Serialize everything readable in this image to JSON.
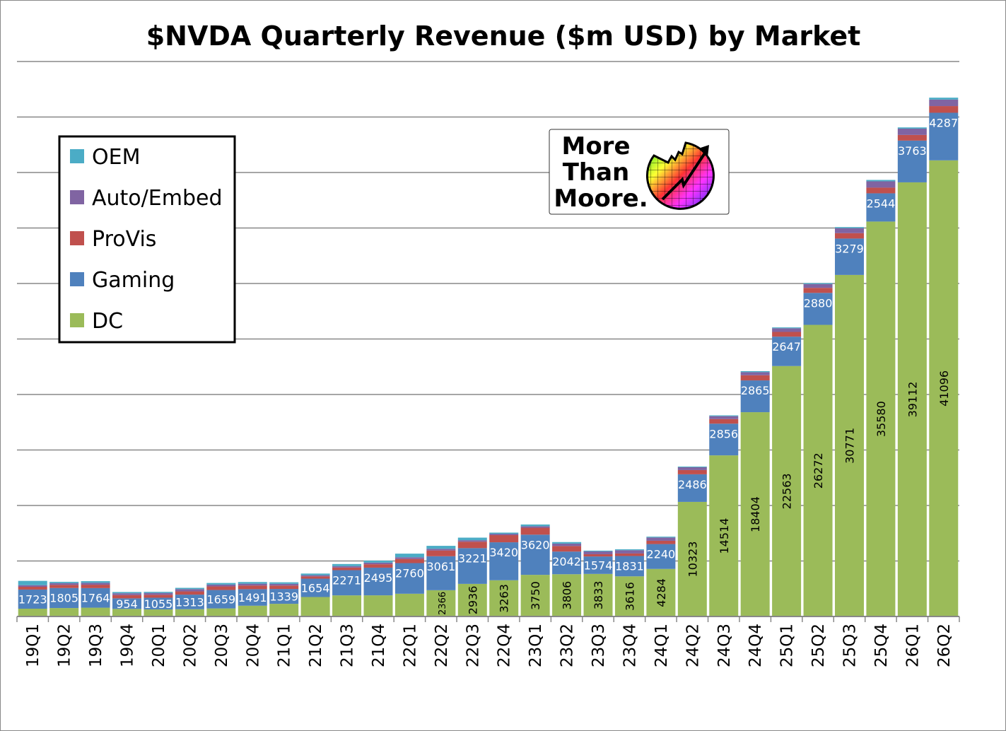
{
  "chart_data": {
    "type": "bar",
    "stacked": true,
    "title": "$NVDA Quarterly Revenue ($m USD) by Market",
    "xlabel": "",
    "ylabel": "",
    "ylim": [
      0,
      50000
    ],
    "y_grid_step": 5000,
    "grid": true,
    "legend_position": "top-left",
    "categories": [
      "19Q1",
      "19Q2",
      "19Q3",
      "19Q4",
      "20Q1",
      "20Q2",
      "20Q3",
      "20Q4",
      "21Q1",
      "21Q2",
      "21Q3",
      "21Q4",
      "22Q1",
      "22Q2",
      "22Q3",
      "22Q4",
      "23Q1",
      "23Q2",
      "23Q3",
      "23Q4",
      "24Q1",
      "24Q2",
      "24Q3",
      "24Q4",
      "25Q1",
      "25Q2",
      "25Q3",
      "25Q4",
      "26Q1",
      "26Q2"
    ],
    "series": [
      {
        "name": "DC",
        "color": "#9BBB59",
        "values": [
          701,
          760,
          792,
          679,
          634,
          655,
          726,
          968,
          1141,
          1752,
          1900,
          1903,
          2048,
          2366,
          2936,
          3263,
          3750,
          3806,
          3833,
          3616,
          4284,
          10323,
          14514,
          18404,
          22563,
          26272,
          30771,
          35580,
          39112,
          41096
        ]
      },
      {
        "name": "Gaming",
        "color": "#4F81BD",
        "values": [
          1723,
          1805,
          1764,
          954,
          1055,
          1313,
          1659,
          1491,
          1339,
          1654,
          2271,
          2495,
          2760,
          3061,
          3221,
          3420,
          3620,
          2042,
          1574,
          1831,
          2240,
          2486,
          2856,
          2865,
          2647,
          2880,
          3279,
          2544,
          3763,
          4287
        ]
      },
      {
        "name": "ProVis",
        "color": "#C0504D",
        "values": [
          251,
          281,
          305,
          293,
          266,
          291,
          324,
          331,
          307,
          203,
          236,
          307,
          372,
          519,
          577,
          643,
          622,
          496,
          200,
          226,
          295,
          379,
          416,
          463,
          427,
          454,
          486,
          511,
          509,
          601
        ]
      },
      {
        "name": "Auto/Embed",
        "color": "#8064A2",
        "values": [
          145,
          161,
          172,
          163,
          166,
          209,
          162,
          163,
          155,
          111,
          125,
          145,
          154,
          152,
          135,
          125,
          138,
          220,
          251,
          294,
          296,
          253,
          261,
          281,
          329,
          346,
          449,
          570,
          567,
          586
        ]
      },
      {
        "name": "OEM",
        "color": "#4BACC6",
        "values": [
          387,
          116,
          148,
          116,
          99,
          111,
          148,
          152,
          138,
          146,
          194,
          180,
          327,
          266,
          234,
          105,
          158,
          140,
          73,
          84,
          77,
          66,
          73,
          90,
          78,
          88,
          97,
          126,
          111,
          173
        ]
      }
    ],
    "data_labels": {
      "Gaming": "all",
      "DC": "from 22Q2"
    },
    "logo_text": "More Than Moore."
  }
}
